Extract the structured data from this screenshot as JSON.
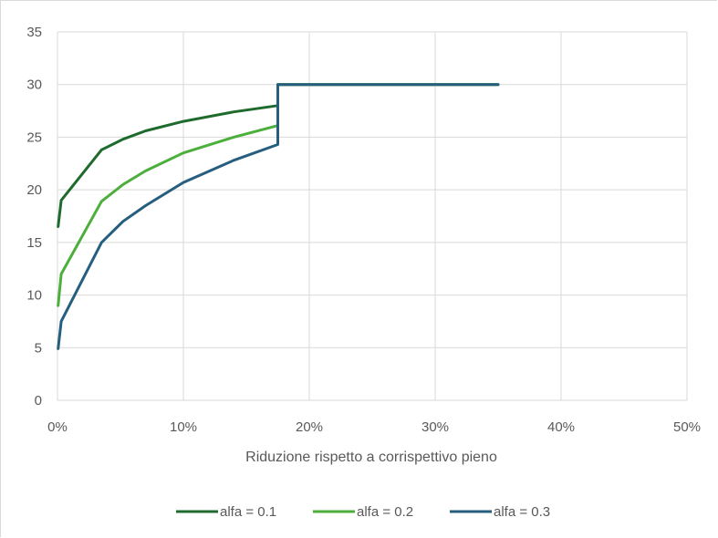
{
  "chart_data": {
    "type": "line",
    "title": "",
    "xlabel": "Riduzione rispetto a corrispettivo pieno",
    "ylabel": "",
    "xlim": [
      0,
      0.5
    ],
    "ylim": [
      0,
      35
    ],
    "x_ticks": [
      {
        "value": 0,
        "label": "0%"
      },
      {
        "value": 0.1,
        "label": "10%"
      },
      {
        "value": 0.2,
        "label": "20%"
      },
      {
        "value": 0.3,
        "label": "30%"
      },
      {
        "value": 0.4,
        "label": "40%"
      },
      {
        "value": 0.5,
        "label": "50%"
      }
    ],
    "y_ticks": [
      {
        "value": 0,
        "label": "0"
      },
      {
        "value": 5,
        "label": "5"
      },
      {
        "value": 10,
        "label": "10"
      },
      {
        "value": 15,
        "label": "15"
      },
      {
        "value": 20,
        "label": "20"
      },
      {
        "value": 25,
        "label": "25"
      },
      {
        "value": 30,
        "label": "30"
      },
      {
        "value": 35,
        "label": "35"
      }
    ],
    "grid": true,
    "legend_position": "bottom",
    "series": [
      {
        "name": "alfa = 0.1",
        "color": "#1e6b2d",
        "points": [
          [
            0.0005,
            16.5
          ],
          [
            0.003,
            19.0
          ],
          [
            0.035,
            23.8
          ],
          [
            0.052,
            24.8
          ],
          [
            0.07,
            25.6
          ],
          [
            0.1,
            26.5
          ],
          [
            0.14,
            27.4
          ],
          [
            0.175,
            28.0
          ],
          [
            0.175,
            30.0
          ],
          [
            0.35,
            30.0
          ]
        ]
      },
      {
        "name": "alfa = 0.2",
        "color": "#4caf3b",
        "points": [
          [
            0.0005,
            9.0
          ],
          [
            0.003,
            12.0
          ],
          [
            0.035,
            18.9
          ],
          [
            0.052,
            20.5
          ],
          [
            0.07,
            21.8
          ],
          [
            0.1,
            23.5
          ],
          [
            0.14,
            25.0
          ],
          [
            0.175,
            26.1
          ],
          [
            0.175,
            30.0
          ],
          [
            0.35,
            30.0
          ]
        ]
      },
      {
        "name": "alfa = 0.3",
        "color": "#255e7e",
        "points": [
          [
            0.0005,
            4.9
          ],
          [
            0.003,
            7.5
          ],
          [
            0.035,
            15.0
          ],
          [
            0.052,
            17.0
          ],
          [
            0.07,
            18.5
          ],
          [
            0.1,
            20.7
          ],
          [
            0.14,
            22.8
          ],
          [
            0.175,
            24.3
          ],
          [
            0.175,
            30.0
          ],
          [
            0.35,
            30.0
          ]
        ]
      }
    ]
  }
}
